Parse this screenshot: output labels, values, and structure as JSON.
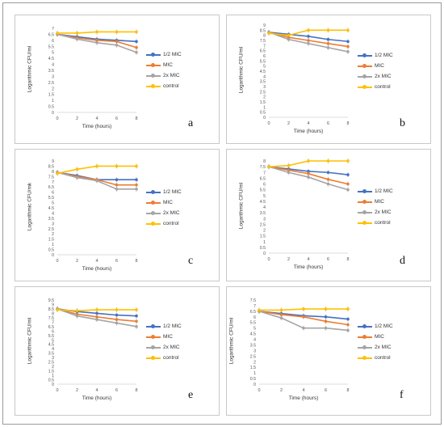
{
  "colors": {
    "half_mic": "#4472C4",
    "mic": "#ED7D31",
    "two_mic": "#A5A5A5",
    "control": "#FFC000"
  },
  "chart_data": [
    {
      "type": "line",
      "label": "a",
      "xlabel": "Time (hours)",
      "ylabel": "Logarithmic CFU/ml",
      "x": [
        0,
        2,
        4,
        6,
        8
      ],
      "ylim": [
        0,
        7
      ],
      "yticks": [
        "0",
        "0.5",
        "1",
        "1.5",
        "2",
        "2.5",
        "3",
        "3.5",
        "4",
        "4.5",
        "5",
        "5.5",
        "6",
        "6.5",
        "7"
      ],
      "legend_position": "right",
      "series": [
        {
          "name": "1/2 MIC",
          "color_key": "half_mic",
          "values": [
            6.5,
            6.3,
            6.1,
            6.0,
            5.9
          ]
        },
        {
          "name": "MIC",
          "color_key": "mic",
          "values": [
            6.5,
            6.2,
            6.0,
            5.9,
            5.4
          ]
        },
        {
          "name": "2x MIC",
          "color_key": "two_mic",
          "values": [
            6.5,
            6.1,
            5.8,
            5.6,
            5.0
          ]
        },
        {
          "name": "control",
          "color_key": "control",
          "values": [
            6.6,
            6.6,
            6.7,
            6.7,
            6.7
          ]
        }
      ]
    },
    {
      "type": "line",
      "label": "b",
      "xlabel": "Time (hours)",
      "ylabel": "Logarithmic CFU/ml",
      "x": [
        0,
        2,
        4,
        6,
        8
      ],
      "ylim": [
        0,
        9
      ],
      "yticks": [
        "0",
        "0.5",
        "1",
        "1.5",
        "2",
        "2.5",
        "3",
        "3.5",
        "4",
        "4.5",
        "5",
        "5.5",
        "6",
        "6.5",
        "7",
        "7.5",
        "8",
        "8.5",
        "9"
      ],
      "legend_position": "right",
      "series": [
        {
          "name": "1/2 MIC",
          "color_key": "half_mic",
          "values": [
            8.3,
            8.1,
            7.9,
            7.6,
            7.4
          ]
        },
        {
          "name": "MIC",
          "color_key": "mic",
          "values": [
            8.3,
            7.8,
            7.5,
            7.2,
            6.9
          ]
        },
        {
          "name": "2x MIC",
          "color_key": "two_mic",
          "values": [
            8.3,
            7.6,
            7.2,
            6.8,
            6.4
          ]
        },
        {
          "name": "control",
          "color_key": "control",
          "values": [
            8.2,
            8.0,
            8.5,
            8.5,
            8.5
          ]
        }
      ]
    },
    {
      "type": "line",
      "label": "c",
      "xlabel": "Time (hours)",
      "ylabel": "Logarithmic CFU/mk",
      "x": [
        0,
        2,
        4,
        6,
        8
      ],
      "ylim": [
        0,
        9
      ],
      "yticks": [
        "0",
        "0.5",
        "1",
        "1.5",
        "2",
        "2.5",
        "3",
        "3.5",
        "4",
        "4.5",
        "5",
        "5.5",
        "6",
        "6.5",
        "7",
        "7.5",
        "8",
        "8.5",
        "9"
      ],
      "legend_position": "right",
      "series": [
        {
          "name": "1/2 MIC",
          "color_key": "half_mic",
          "values": [
            7.9,
            7.6,
            7.2,
            7.2,
            7.2
          ]
        },
        {
          "name": "MIC",
          "color_key": "mic",
          "values": [
            7.9,
            7.5,
            7.2,
            6.7,
            6.7
          ]
        },
        {
          "name": "2x MIC",
          "color_key": "two_mic",
          "values": [
            7.9,
            7.4,
            7.1,
            6.3,
            6.3
          ]
        },
        {
          "name": "control",
          "color_key": "control",
          "values": [
            7.8,
            8.2,
            8.5,
            8.5,
            8.5
          ]
        }
      ]
    },
    {
      "type": "line",
      "label": "d",
      "xlabel": "Time (hours)",
      "ylabel": "Logarithmic CFU/ml",
      "x": [
        0,
        2,
        4,
        6,
        8
      ],
      "ylim": [
        0,
        8
      ],
      "yticks": [
        "0",
        "0.5",
        "1",
        "1.5",
        "2",
        "2.5",
        "3",
        "3.5",
        "4",
        "4.5",
        "5",
        "5.5",
        "6",
        "6.5",
        "7",
        "7.5",
        "8"
      ],
      "legend_position": "right",
      "series": [
        {
          "name": "1/2 MIC",
          "color_key": "half_mic",
          "values": [
            7.5,
            7.3,
            7.1,
            7.0,
            6.8
          ]
        },
        {
          "name": "MIC",
          "color_key": "mic",
          "values": [
            7.5,
            7.2,
            6.9,
            6.4,
            6.0
          ]
        },
        {
          "name": "2x MIC",
          "color_key": "two_mic",
          "values": [
            7.5,
            7.0,
            6.6,
            6.0,
            5.5
          ]
        },
        {
          "name": "control",
          "color_key": "control",
          "values": [
            7.5,
            7.6,
            8.0,
            8.0,
            8.0
          ]
        }
      ]
    },
    {
      "type": "line",
      "label": "e",
      "xlabel": "Time (hours)",
      "ylabel": "Logarithmic CFU/ml",
      "x": [
        0,
        2,
        4,
        6,
        8
      ],
      "ylim": [
        0,
        9.5
      ],
      "yticks": [
        "0",
        "0.5",
        "1",
        "1.5",
        "2",
        "2.5",
        "3",
        "3.5",
        "4",
        "4.5",
        "5",
        "5.5",
        "6",
        "6.5",
        "7",
        "7.5",
        "8",
        "8.5",
        "9",
        "9.5"
      ],
      "legend_position": "right",
      "series": [
        {
          "name": "1/2 MIC",
          "color_key": "half_mic",
          "values": [
            8.5,
            8.2,
            8.0,
            7.8,
            7.7
          ]
        },
        {
          "name": "MIC",
          "color_key": "mic",
          "values": [
            8.5,
            7.9,
            7.6,
            7.3,
            7.1
          ]
        },
        {
          "name": "2x MIC",
          "color_key": "two_mic",
          "values": [
            8.5,
            7.7,
            7.3,
            6.9,
            6.5
          ]
        },
        {
          "name": "control",
          "color_key": "control",
          "values": [
            8.4,
            8.3,
            8.4,
            8.4,
            8.4
          ]
        }
      ]
    },
    {
      "type": "line",
      "label": "f",
      "xlabel": "Time (hours)",
      "ylabel": "Logarithmic CFU/ml",
      "x": [
        0,
        2,
        4,
        6,
        8
      ],
      "ylim": [
        0,
        7.5
      ],
      "yticks": [
        "0",
        "0.5",
        "1",
        "1.5",
        "2",
        "2.5",
        "3",
        "3.5",
        "4",
        "4.5",
        "5",
        "5.5",
        "6",
        "6.5",
        "7",
        "7.5"
      ],
      "legend_position": "right",
      "series": [
        {
          "name": "1/2 MIC",
          "color_key": "half_mic",
          "values": [
            6.5,
            6.3,
            6.1,
            6.0,
            5.8
          ]
        },
        {
          "name": "MIC",
          "color_key": "mic",
          "values": [
            6.5,
            6.2,
            6.0,
            5.6,
            5.3
          ]
        },
        {
          "name": "2x MIC",
          "color_key": "two_mic",
          "values": [
            6.5,
            5.9,
            5.0,
            5.0,
            4.8
          ]
        },
        {
          "name": "control",
          "color_key": "control",
          "values": [
            6.6,
            6.6,
            6.7,
            6.7,
            6.7
          ]
        }
      ]
    }
  ]
}
